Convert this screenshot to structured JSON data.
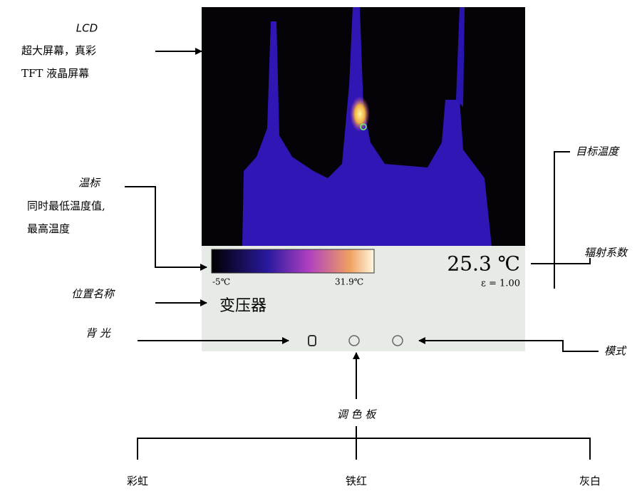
{
  "lcd": {
    "title": "LCD",
    "lines": [
      "超大屏幕，真彩",
      "TFT 液晶屏幕"
    ]
  },
  "scale": {
    "title": "温标",
    "lines": [
      "同时最低温度值,",
      "最高温度"
    ]
  },
  "location": {
    "title": "位置名称"
  },
  "backlight": {
    "title": "背 光"
  },
  "palette": {
    "title": "调 色 板",
    "options": [
      "彩虹",
      "铁红",
      "灰白"
    ]
  },
  "target_temp": {
    "title": "目标温度"
  },
  "emissivity": {
    "title": "辐射系数"
  },
  "mode": {
    "title": "模式"
  },
  "screen": {
    "min_temp": "-5℃",
    "max_temp": "31.9℃",
    "target_temp": "25.3 ℃",
    "emissivity": "ε = 1.00",
    "location_name": "变压器"
  }
}
